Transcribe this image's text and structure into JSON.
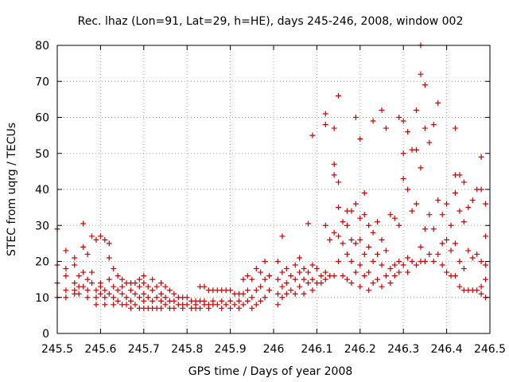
{
  "chart_data": {
    "type": "scatter",
    "title": "Rec. lhaz (Lon=91, Lat=29, h=HE), days 245-246, 2008, window 002",
    "xlabel": "GPS time / Days of year 2008",
    "ylabel": "STEC from uqrg / TECUs",
    "xlim": [
      245.5,
      246.5
    ],
    "ylim": [
      0,
      80
    ],
    "xticks": [
      245.5,
      245.6,
      245.7,
      245.8,
      245.9,
      246,
      246.1,
      246.2,
      246.3,
      246.4,
      246.5
    ],
    "xtick_labels": [
      "245.5",
      "245.6",
      "245.7",
      "245.8",
      "245.9",
      "246",
      "246.1",
      "246.2",
      "246.3",
      "246.4",
      "246.5"
    ],
    "yticks": [
      0,
      10,
      20,
      30,
      40,
      50,
      60,
      70,
      80
    ],
    "ytick_labels": [
      "0",
      "10",
      "20",
      "30",
      "40",
      "50",
      "60",
      "70",
      "80"
    ],
    "grid": true,
    "marker": "plus",
    "color": "#cc0000",
    "points": [
      [
        245.5,
        29
      ],
      [
        245.5,
        19
      ],
      [
        245.5,
        14
      ],
      [
        245.5,
        10
      ],
      [
        245.52,
        23
      ],
      [
        245.52,
        18
      ],
      [
        245.52,
        16
      ],
      [
        245.52,
        12
      ],
      [
        245.52,
        10
      ],
      [
        245.54,
        21
      ],
      [
        245.54,
        19
      ],
      [
        245.54,
        14
      ],
      [
        245.54,
        12
      ],
      [
        245.54,
        11
      ],
      [
        245.55,
        16
      ],
      [
        245.55,
        13
      ],
      [
        245.55,
        11
      ],
      [
        245.56,
        30.5
      ],
      [
        245.56,
        24
      ],
      [
        245.56,
        17
      ],
      [
        245.56,
        13
      ],
      [
        245.57,
        22
      ],
      [
        245.57,
        15
      ],
      [
        245.57,
        12
      ],
      [
        245.57,
        10
      ],
      [
        245.58,
        27
      ],
      [
        245.58,
        17
      ],
      [
        245.58,
        14
      ],
      [
        245.59,
        26
      ],
      [
        245.59,
        12
      ],
      [
        245.59,
        10
      ],
      [
        245.59,
        8
      ],
      [
        245.6,
        27
      ],
      [
        245.6,
        14
      ],
      [
        245.6,
        13
      ],
      [
        245.6,
        11
      ],
      [
        245.61,
        26
      ],
      [
        245.61,
        12
      ],
      [
        245.61,
        10
      ],
      [
        245.61,
        8
      ],
      [
        245.62,
        25
      ],
      [
        245.62,
        21
      ],
      [
        245.62,
        15
      ],
      [
        245.62,
        11
      ],
      [
        245.63,
        18
      ],
      [
        245.63,
        13
      ],
      [
        245.63,
        10
      ],
      [
        245.63,
        8
      ],
      [
        245.64,
        16
      ],
      [
        245.64,
        12
      ],
      [
        245.64,
        9
      ],
      [
        245.65,
        15
      ],
      [
        245.65,
        13
      ],
      [
        245.65,
        11
      ],
      [
        245.65,
        8
      ],
      [
        245.66,
        14
      ],
      [
        245.66,
        10
      ],
      [
        245.66,
        8
      ],
      [
        245.67,
        14
      ],
      [
        245.67,
        12
      ],
      [
        245.67,
        9
      ],
      [
        245.67,
        7
      ],
      [
        245.68,
        14
      ],
      [
        245.68,
        11
      ],
      [
        245.68,
        8
      ],
      [
        245.69,
        15
      ],
      [
        245.69,
        13
      ],
      [
        245.69,
        10
      ],
      [
        245.69,
        7
      ],
      [
        245.7,
        16
      ],
      [
        245.7,
        14
      ],
      [
        245.7,
        11
      ],
      [
        245.7,
        9
      ],
      [
        245.7,
        7
      ],
      [
        245.71,
        13
      ],
      [
        245.71,
        10
      ],
      [
        245.71,
        7
      ],
      [
        245.72,
        15
      ],
      [
        245.72,
        12
      ],
      [
        245.72,
        9
      ],
      [
        245.72,
        7
      ],
      [
        245.73,
        13
      ],
      [
        245.73,
        10
      ],
      [
        245.73,
        7
      ],
      [
        245.74,
        14
      ],
      [
        245.74,
        11
      ],
      [
        245.74,
        9
      ],
      [
        245.74,
        7
      ],
      [
        245.75,
        13
      ],
      [
        245.75,
        10
      ],
      [
        245.75,
        8
      ],
      [
        245.76,
        12
      ],
      [
        245.76,
        9
      ],
      [
        245.76,
        7
      ],
      [
        245.77,
        11
      ],
      [
        245.77,
        9
      ],
      [
        245.77,
        7
      ],
      [
        245.78,
        10
      ],
      [
        245.78,
        8
      ],
      [
        245.79,
        10
      ],
      [
        245.79,
        8
      ],
      [
        245.79,
        7
      ],
      [
        245.8,
        10
      ],
      [
        245.8,
        8
      ],
      [
        245.81,
        9
      ],
      [
        245.81,
        7
      ],
      [
        245.82,
        9
      ],
      [
        245.82,
        8
      ],
      [
        245.82,
        7
      ],
      [
        245.83,
        13
      ],
      [
        245.83,
        9
      ],
      [
        245.83,
        7
      ],
      [
        245.84,
        13
      ],
      [
        245.84,
        9
      ],
      [
        245.84,
        8
      ],
      [
        245.85,
        12
      ],
      [
        245.85,
        8
      ],
      [
        245.85,
        7
      ],
      [
        245.86,
        12
      ],
      [
        245.86,
        9
      ],
      [
        245.86,
        8
      ],
      [
        245.87,
        12
      ],
      [
        245.87,
        8
      ],
      [
        245.88,
        12
      ],
      [
        245.88,
        9
      ],
      [
        245.88,
        7
      ],
      [
        245.89,
        12
      ],
      [
        245.89,
        8
      ],
      [
        245.9,
        12
      ],
      [
        245.9,
        9
      ],
      [
        245.9,
        7
      ],
      [
        245.91,
        11
      ],
      [
        245.91,
        8
      ],
      [
        245.92,
        11
      ],
      [
        245.92,
        9
      ],
      [
        245.92,
        7
      ],
      [
        245.93,
        15
      ],
      [
        245.93,
        11
      ],
      [
        245.93,
        8
      ],
      [
        245.94,
        16
      ],
      [
        245.94,
        12
      ],
      [
        245.94,
        9
      ],
      [
        245.95,
        15
      ],
      [
        245.95,
        10
      ],
      [
        245.95,
        7
      ],
      [
        245.96,
        18
      ],
      [
        245.96,
        12
      ],
      [
        245.96,
        8
      ],
      [
        245.97,
        17
      ],
      [
        245.97,
        13
      ],
      [
        245.97,
        9
      ],
      [
        245.98,
        20
      ],
      [
        245.98,
        15
      ],
      [
        245.98,
        10
      ],
      [
        245.99,
        16
      ],
      [
        245.99,
        12
      ],
      [
        246.01,
        20
      ],
      [
        246.01,
        15
      ],
      [
        246.01,
        11
      ],
      [
        246.01,
        8
      ],
      [
        246.02,
        27
      ],
      [
        246.02,
        17
      ],
      [
        246.02,
        13
      ],
      [
        246.02,
        10
      ],
      [
        246.03,
        18
      ],
      [
        246.03,
        14
      ],
      [
        246.03,
        11
      ],
      [
        246.04,
        16
      ],
      [
        246.04,
        12
      ],
      [
        246.05,
        19
      ],
      [
        246.05,
        15
      ],
      [
        246.05,
        11
      ],
      [
        246.06,
        21
      ],
      [
        246.06,
        17
      ],
      [
        246.06,
        13
      ],
      [
        246.07,
        18
      ],
      [
        246.07,
        15
      ],
      [
        246.07,
        11
      ],
      [
        246.08,
        30.5
      ],
      [
        246.08,
        17
      ],
      [
        246.08,
        14
      ],
      [
        246.09,
        55
      ],
      [
        246.09,
        19
      ],
      [
        246.09,
        15
      ],
      [
        246.09,
        12
      ],
      [
        246.1,
        18
      ],
      [
        246.1,
        14
      ],
      [
        246.11,
        16
      ],
      [
        246.11,
        14
      ],
      [
        246.12,
        61
      ],
      [
        246.12,
        58
      ],
      [
        246.12,
        30
      ],
      [
        246.12,
        17
      ],
      [
        246.12,
        15
      ],
      [
        246.13,
        26
      ],
      [
        246.13,
        16
      ],
      [
        246.14,
        57
      ],
      [
        246.14,
        47
      ],
      [
        246.14,
        44
      ],
      [
        246.14,
        28
      ],
      [
        246.14,
        16
      ],
      [
        246.15,
        66
      ],
      [
        246.15,
        42
      ],
      [
        246.15,
        35
      ],
      [
        246.15,
        27
      ],
      [
        246.15,
        20
      ],
      [
        246.16,
        31
      ],
      [
        246.16,
        25
      ],
      [
        246.16,
        16
      ],
      [
        246.17,
        34
      ],
      [
        246.17,
        30
      ],
      [
        246.17,
        22
      ],
      [
        246.17,
        15
      ],
      [
        246.18,
        34
      ],
      [
        246.18,
        26
      ],
      [
        246.18,
        20
      ],
      [
        246.18,
        14
      ],
      [
        246.19,
        60
      ],
      [
        246.19,
        36
      ],
      [
        246.19,
        25
      ],
      [
        246.19,
        17
      ],
      [
        246.2,
        54
      ],
      [
        246.2,
        32
      ],
      [
        246.2,
        26
      ],
      [
        246.2,
        19
      ],
      [
        246.2,
        13
      ],
      [
        246.21,
        39
      ],
      [
        246.21,
        33
      ],
      [
        246.21,
        22
      ],
      [
        246.21,
        16
      ],
      [
        246.22,
        30
      ],
      [
        246.22,
        24
      ],
      [
        246.22,
        17
      ],
      [
        246.22,
        12
      ],
      [
        246.23,
        59
      ],
      [
        246.23,
        28
      ],
      [
        246.23,
        20
      ],
      [
        246.23,
        14
      ],
      [
        246.24,
        31
      ],
      [
        246.24,
        22
      ],
      [
        246.24,
        15
      ],
      [
        246.25,
        62
      ],
      [
        246.25,
        26
      ],
      [
        246.25,
        19
      ],
      [
        246.25,
        13
      ],
      [
        246.26,
        57
      ],
      [
        246.26,
        23
      ],
      [
        246.26,
        16
      ],
      [
        246.27,
        33
      ],
      [
        246.27,
        18
      ],
      [
        246.27,
        14
      ],
      [
        246.28,
        32
      ],
      [
        246.28,
        19
      ],
      [
        246.28,
        16
      ],
      [
        246.29,
        60
      ],
      [
        246.29,
        30
      ],
      [
        246.29,
        20
      ],
      [
        246.29,
        17
      ],
      [
        246.3,
        59
      ],
      [
        246.3,
        50
      ],
      [
        246.3,
        43
      ],
      [
        246.3,
        19
      ],
      [
        246.31,
        56
      ],
      [
        246.31,
        40
      ],
      [
        246.31,
        21
      ],
      [
        246.31,
        17
      ],
      [
        246.32,
        51
      ],
      [
        246.32,
        34
      ],
      [
        246.32,
        20
      ],
      [
        246.33,
        62
      ],
      [
        246.33,
        51
      ],
      [
        246.33,
        36
      ],
      [
        246.33,
        19
      ],
      [
        246.34,
        80
      ],
      [
        246.34,
        72
      ],
      [
        246.34,
        46
      ],
      [
        246.34,
        24
      ],
      [
        246.34,
        20
      ],
      [
        246.35,
        69
      ],
      [
        246.35,
        57
      ],
      [
        246.35,
        29
      ],
      [
        246.35,
        20
      ],
      [
        246.36,
        53
      ],
      [
        246.36,
        33
      ],
      [
        246.36,
        22
      ],
      [
        246.37,
        58
      ],
      [
        246.37,
        29
      ],
      [
        246.37,
        20
      ],
      [
        246.38,
        64
      ],
      [
        246.38,
        37
      ],
      [
        246.38,
        22
      ],
      [
        246.39,
        33
      ],
      [
        246.39,
        25
      ],
      [
        246.39,
        19
      ],
      [
        246.4,
        36
      ],
      [
        246.4,
        26
      ],
      [
        246.4,
        17
      ],
      [
        246.41,
        30
      ],
      [
        246.41,
        23
      ],
      [
        246.41,
        16
      ],
      [
        246.42,
        57
      ],
      [
        246.42,
        44
      ],
      [
        246.42,
        39
      ],
      [
        246.42,
        25
      ],
      [
        246.42,
        16
      ],
      [
        246.43,
        44
      ],
      [
        246.43,
        34
      ],
      [
        246.43,
        20
      ],
      [
        246.43,
        13
      ],
      [
        246.44,
        42
      ],
      [
        246.44,
        31
      ],
      [
        246.44,
        18
      ],
      [
        246.44,
        12
      ],
      [
        246.45,
        35
      ],
      [
        246.45,
        23
      ],
      [
        246.45,
        12
      ],
      [
        246.46,
        37
      ],
      [
        246.46,
        21
      ],
      [
        246.46,
        12
      ],
      [
        246.47,
        40
      ],
      [
        246.47,
        22
      ],
      [
        246.47,
        12
      ],
      [
        246.48,
        49
      ],
      [
        246.48,
        40
      ],
      [
        246.48,
        20
      ],
      [
        246.48,
        13
      ],
      [
        246.48,
        11
      ],
      [
        246.49,
        36
      ],
      [
        246.49,
        27
      ],
      [
        246.49,
        19
      ],
      [
        246.49,
        15
      ],
      [
        246.49,
        10
      ]
    ]
  }
}
